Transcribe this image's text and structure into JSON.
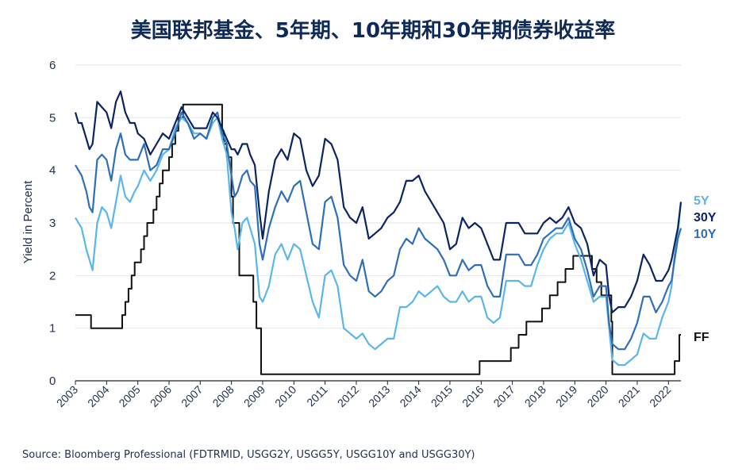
{
  "title": "美国联邦基金、5年期、10年期和30年期债券收益率",
  "source": "Source: Bloomberg Professional (FDTRMID, USGG2Y, USGG5Y, USGG10Y and USGG30Y)",
  "colors": {
    "ff": "#111111",
    "y5": "#5bb6ea",
    "y10": "#2f6fb8",
    "y30": "#0c2461",
    "grid": "#e6e6e6",
    "axis": "#222222",
    "text": "#1f2f4d"
  },
  "chart_data": {
    "type": "line",
    "title": "美国联邦基金、5年期、10年期和30年期债券收益率",
    "xlabel": "",
    "ylabel": "Yield in Percent",
    "ylim": [
      0,
      6
    ],
    "xlim": [
      2003.0,
      2022.4
    ],
    "grid": true,
    "legend": "right-edge labels",
    "yticks": [
      "0",
      "1",
      "2",
      "3",
      "4",
      "5",
      "6"
    ],
    "xticks": [
      "2003",
      "2004",
      "2005",
      "2006",
      "2007",
      "2008",
      "2009",
      "2010",
      "2011",
      "2012",
      "2013",
      "2014",
      "2015",
      "2016",
      "2017",
      "2018",
      "2019",
      "2020",
      "2021",
      "2022"
    ],
    "series": [
      {
        "name": "5Y",
        "x": [
          2003.0,
          2003.1,
          2003.2,
          2003.35,
          2003.45,
          2003.55,
          2003.7,
          2003.85,
          2004.0,
          2004.15,
          2004.3,
          2004.45,
          2004.6,
          2004.75,
          2004.9,
          2005.0,
          2005.2,
          2005.4,
          2005.6,
          2005.8,
          2006.0,
          2006.2,
          2006.4,
          2006.6,
          2006.8,
          2007.0,
          2007.2,
          2007.4,
          2007.55,
          2007.7,
          2007.85,
          2008.0,
          2008.1,
          2008.2,
          2008.35,
          2008.5,
          2008.6,
          2008.75,
          2008.9,
          2009.0,
          2009.2,
          2009.4,
          2009.6,
          2009.8,
          2010.0,
          2010.2,
          2010.4,
          2010.6,
          2010.8,
          2011.0,
          2011.2,
          2011.4,
          2011.6,
          2011.8,
          2012.0,
          2012.2,
          2012.4,
          2012.6,
          2012.8,
          2013.0,
          2013.2,
          2013.4,
          2013.6,
          2013.8,
          2014.0,
          2014.2,
          2014.4,
          2014.6,
          2014.8,
          2015.0,
          2015.2,
          2015.4,
          2015.6,
          2015.8,
          2016.0,
          2016.2,
          2016.4,
          2016.6,
          2016.8,
          2017.0,
          2017.2,
          2017.4,
          2017.6,
          2017.8,
          2018.0,
          2018.2,
          2018.4,
          2018.6,
          2018.8,
          2019.0,
          2019.2,
          2019.4,
          2019.6,
          2019.8,
          2020.0,
          2020.1,
          2020.2,
          2020.4,
          2020.6,
          2020.8,
          2021.0,
          2021.2,
          2021.4,
          2021.6,
          2021.8,
          2022.0,
          2022.1,
          2022.2,
          2022.3,
          2022.4
        ],
        "values": [
          3.1,
          3.0,
          2.9,
          2.5,
          2.3,
          2.1,
          3.0,
          3.3,
          3.2,
          2.9,
          3.4,
          3.9,
          3.5,
          3.4,
          3.6,
          3.7,
          4.0,
          3.8,
          4.0,
          4.3,
          4.4,
          4.8,
          5.0,
          4.9,
          4.7,
          4.7,
          4.6,
          4.9,
          5.0,
          4.6,
          4.3,
          3.2,
          2.9,
          2.5,
          3.0,
          3.1,
          2.9,
          2.6,
          1.6,
          1.5,
          1.8,
          2.4,
          2.6,
          2.3,
          2.6,
          2.5,
          2.0,
          1.5,
          1.2,
          2.0,
          2.1,
          1.8,
          1.0,
          0.9,
          0.8,
          0.9,
          0.7,
          0.6,
          0.7,
          0.8,
          0.8,
          1.4,
          1.4,
          1.5,
          1.7,
          1.6,
          1.7,
          1.8,
          1.6,
          1.5,
          1.5,
          1.7,
          1.5,
          1.6,
          1.6,
          1.2,
          1.1,
          1.2,
          1.9,
          1.9,
          1.9,
          1.8,
          1.8,
          2.2,
          2.5,
          2.7,
          2.8,
          2.8,
          3.0,
          2.6,
          2.3,
          1.9,
          1.5,
          1.6,
          1.6,
          1.0,
          0.4,
          0.3,
          0.3,
          0.4,
          0.5,
          0.9,
          0.8,
          0.8,
          1.2,
          1.5,
          1.8,
          2.4,
          2.8,
          3.4
        ]
      },
      {
        "name": "10Y",
        "x": [
          2003.0,
          2003.1,
          2003.2,
          2003.35,
          2003.45,
          2003.55,
          2003.7,
          2003.85,
          2004.0,
          2004.15,
          2004.3,
          2004.45,
          2004.6,
          2004.75,
          2004.9,
          2005.0,
          2005.2,
          2005.4,
          2005.6,
          2005.8,
          2006.0,
          2006.2,
          2006.4,
          2006.6,
          2006.8,
          2007.0,
          2007.2,
          2007.4,
          2007.55,
          2007.7,
          2007.85,
          2008.0,
          2008.1,
          2008.2,
          2008.35,
          2008.5,
          2008.6,
          2008.75,
          2008.9,
          2009.0,
          2009.2,
          2009.4,
          2009.6,
          2009.8,
          2010.0,
          2010.2,
          2010.4,
          2010.6,
          2010.8,
          2011.0,
          2011.2,
          2011.4,
          2011.6,
          2011.8,
          2012.0,
          2012.2,
          2012.4,
          2012.6,
          2012.8,
          2013.0,
          2013.2,
          2013.4,
          2013.6,
          2013.8,
          2014.0,
          2014.2,
          2014.4,
          2014.6,
          2014.8,
          2015.0,
          2015.2,
          2015.4,
          2015.6,
          2015.8,
          2016.0,
          2016.2,
          2016.4,
          2016.6,
          2016.8,
          2017.0,
          2017.2,
          2017.4,
          2017.6,
          2017.8,
          2018.0,
          2018.2,
          2018.4,
          2018.6,
          2018.8,
          2019.0,
          2019.2,
          2019.4,
          2019.6,
          2019.8,
          2020.0,
          2020.1,
          2020.2,
          2020.4,
          2020.6,
          2020.8,
          2021.0,
          2021.2,
          2021.4,
          2021.6,
          2021.8,
          2022.0,
          2022.1,
          2022.2,
          2022.3,
          2022.4
        ],
        "values": [
          4.1,
          4.0,
          3.9,
          3.6,
          3.3,
          3.2,
          4.2,
          4.3,
          4.2,
          3.8,
          4.4,
          4.7,
          4.3,
          4.2,
          4.2,
          4.2,
          4.5,
          4.0,
          4.1,
          4.4,
          4.4,
          4.7,
          5.1,
          4.9,
          4.6,
          4.7,
          4.6,
          5.0,
          5.1,
          4.7,
          4.5,
          3.9,
          3.5,
          3.6,
          3.9,
          4.0,
          3.8,
          3.7,
          2.6,
          2.3,
          2.9,
          3.3,
          3.6,
          3.4,
          3.7,
          3.8,
          3.2,
          2.6,
          2.5,
          3.4,
          3.5,
          3.1,
          2.2,
          2.0,
          1.9,
          2.3,
          1.7,
          1.6,
          1.7,
          1.9,
          2.0,
          2.5,
          2.7,
          2.6,
          2.9,
          2.7,
          2.6,
          2.5,
          2.3,
          2.0,
          2.0,
          2.3,
          2.1,
          2.2,
          2.2,
          1.8,
          1.6,
          1.6,
          2.4,
          2.4,
          2.4,
          2.2,
          2.2,
          2.4,
          2.7,
          2.8,
          2.9,
          2.9,
          3.1,
          2.7,
          2.5,
          2.1,
          1.6,
          1.8,
          1.8,
          1.1,
          0.7,
          0.6,
          0.6,
          0.8,
          1.1,
          1.6,
          1.6,
          1.3,
          1.5,
          1.8,
          1.9,
          2.3,
          2.7,
          2.9
        ]
      },
      {
        "name": "30Y",
        "x": [
          2003.0,
          2003.1,
          2003.2,
          2003.35,
          2003.45,
          2003.55,
          2003.7,
          2003.85,
          2004.0,
          2004.15,
          2004.3,
          2004.45,
          2004.6,
          2004.75,
          2004.9,
          2005.0,
          2005.2,
          2005.4,
          2005.6,
          2005.8,
          2006.0,
          2006.2,
          2006.4,
          2006.6,
          2006.8,
          2007.0,
          2007.2,
          2007.4,
          2007.55,
          2007.7,
          2007.85,
          2008.0,
          2008.1,
          2008.2,
          2008.35,
          2008.5,
          2008.6,
          2008.75,
          2008.9,
          2009.0,
          2009.2,
          2009.4,
          2009.6,
          2009.8,
          2010.0,
          2010.2,
          2010.4,
          2010.6,
          2010.8,
          2011.0,
          2011.2,
          2011.4,
          2011.6,
          2011.8,
          2012.0,
          2012.2,
          2012.4,
          2012.6,
          2012.8,
          2013.0,
          2013.2,
          2013.4,
          2013.6,
          2013.8,
          2014.0,
          2014.2,
          2014.4,
          2014.6,
          2014.8,
          2015.0,
          2015.2,
          2015.4,
          2015.6,
          2015.8,
          2016.0,
          2016.2,
          2016.4,
          2016.6,
          2016.8,
          2017.0,
          2017.2,
          2017.4,
          2017.6,
          2017.8,
          2018.0,
          2018.2,
          2018.4,
          2018.6,
          2018.8,
          2019.0,
          2019.2,
          2019.4,
          2019.6,
          2019.8,
          2020.0,
          2020.1,
          2020.2,
          2020.4,
          2020.6,
          2020.8,
          2021.0,
          2021.2,
          2021.4,
          2021.6,
          2021.8,
          2022.0,
          2022.1,
          2022.2,
          2022.3,
          2022.4
        ],
        "values": [
          5.1,
          4.9,
          4.9,
          4.6,
          4.4,
          4.5,
          5.3,
          5.2,
          5.1,
          4.8,
          5.3,
          5.5,
          5.1,
          4.9,
          4.9,
          4.7,
          4.6,
          4.3,
          4.5,
          4.7,
          4.6,
          4.9,
          5.2,
          5.0,
          4.8,
          4.8,
          4.8,
          5.1,
          5.0,
          4.8,
          4.6,
          4.4,
          4.4,
          4.3,
          4.5,
          4.5,
          4.3,
          4.1,
          3.2,
          2.7,
          3.6,
          4.2,
          4.4,
          4.2,
          4.7,
          4.6,
          4.0,
          3.7,
          3.9,
          4.6,
          4.5,
          4.2,
          3.3,
          3.1,
          3.0,
          3.3,
          2.7,
          2.8,
          2.9,
          3.1,
          3.2,
          3.4,
          3.8,
          3.8,
          3.9,
          3.6,
          3.4,
          3.2,
          3.0,
          2.5,
          2.6,
          3.1,
          2.9,
          3.0,
          2.9,
          2.6,
          2.3,
          2.3,
          3.0,
          3.0,
          3.0,
          2.8,
          2.8,
          2.8,
          3.0,
          3.1,
          3.0,
          3.1,
          3.3,
          3.0,
          2.9,
          2.6,
          2.0,
          2.3,
          2.2,
          1.6,
          1.3,
          1.4,
          1.4,
          1.6,
          1.9,
          2.4,
          2.2,
          1.9,
          1.9,
          2.1,
          2.3,
          2.6,
          2.9,
          3.4
        ]
      },
      {
        "name": "FF",
        "step": true,
        "x": [
          2003.0,
          2003.5,
          2004.5,
          2004.6,
          2004.7,
          2004.8,
          2004.9,
          2005.0,
          2005.1,
          2005.2,
          2005.3,
          2005.4,
          2005.5,
          2005.6,
          2005.7,
          2005.8,
          2005.9,
          2006.0,
          2006.1,
          2006.2,
          2006.3,
          2006.45,
          2007.7,
          2007.75,
          2007.85,
          2008.0,
          2008.05,
          2008.25,
          2008.7,
          2008.8,
          2008.95,
          2015.95,
          2016.95,
          2017.2,
          2017.45,
          2017.95,
          2018.2,
          2018.45,
          2018.7,
          2018.95,
          2019.55,
          2019.7,
          2019.85,
          2020.17,
          2020.2,
          2022.2,
          2022.35,
          2022.4
        ],
        "values": [
          1.25,
          1.0,
          1.25,
          1.5,
          1.75,
          2.0,
          2.25,
          2.25,
          2.5,
          2.75,
          3.0,
          3.0,
          3.25,
          3.5,
          3.75,
          4.0,
          4.0,
          4.25,
          4.5,
          4.75,
          5.0,
          5.25,
          4.75,
          4.5,
          4.25,
          3.5,
          3.0,
          2.0,
          1.5,
          1.0,
          0.125,
          0.375,
          0.625,
          0.875,
          1.125,
          1.375,
          1.625,
          1.875,
          2.125,
          2.375,
          2.125,
          1.875,
          1.625,
          1.125,
          0.125,
          0.375,
          0.875,
          0.875
        ]
      }
    ]
  }
}
